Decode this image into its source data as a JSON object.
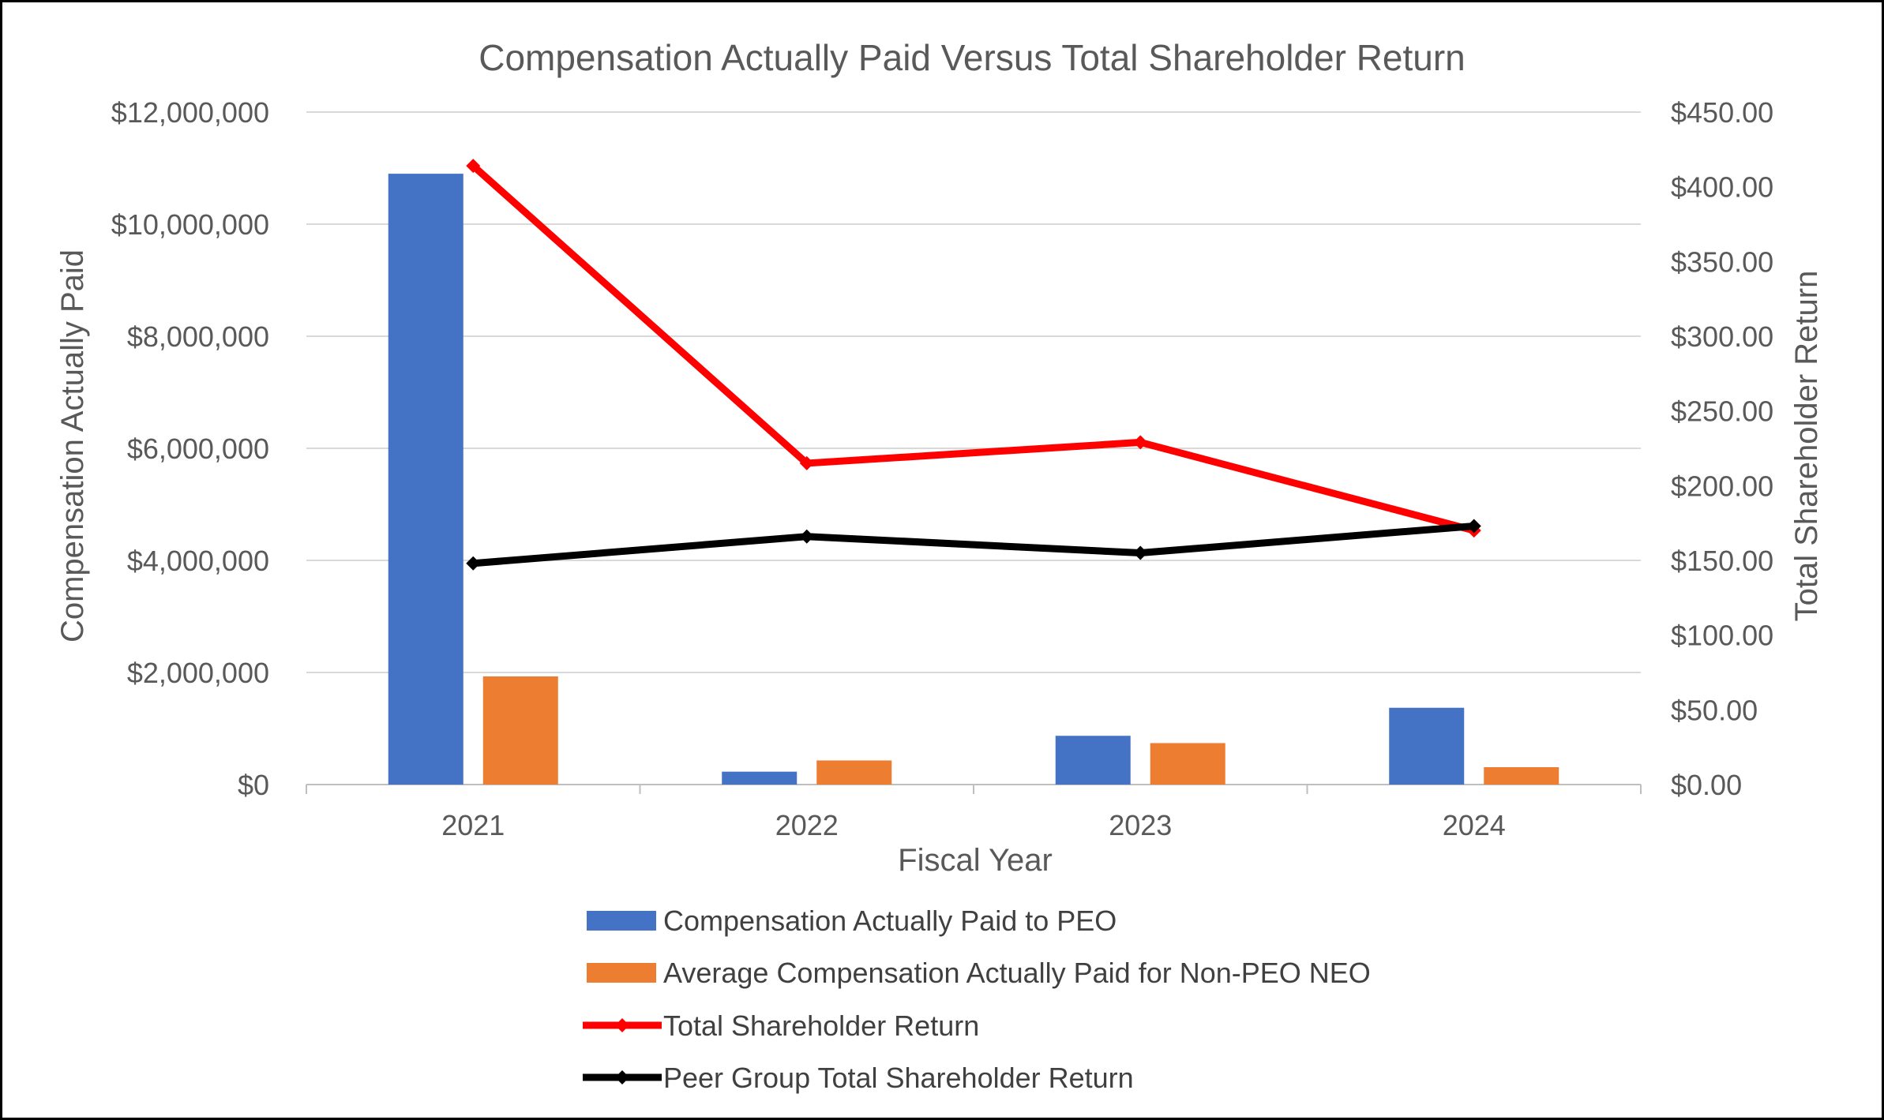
{
  "chart_data": {
    "type": "bar",
    "title": "Compensation Actually Paid Versus Total Shareholder Return",
    "xlabel": "Fiscal Year",
    "ylabel": "Compensation Actually Paid",
    "y2label": "Total Shareholder Return",
    "categories": [
      "2021",
      "2022",
      "2023",
      "2024"
    ],
    "ylim": [
      0,
      12000000
    ],
    "y2lim": [
      0,
      450
    ],
    "y_ticks": [
      {
        "value": 0,
        "label": "$0"
      },
      {
        "value": 2000000,
        "label": "$2,000,000"
      },
      {
        "value": 4000000,
        "label": "$4,000,000"
      },
      {
        "value": 6000000,
        "label": "$6,000,000"
      },
      {
        "value": 8000000,
        "label": "$8,000,000"
      },
      {
        "value": 10000000,
        "label": "$10,000,000"
      },
      {
        "value": 12000000,
        "label": "$12,000,000"
      }
    ],
    "y2_ticks": [
      {
        "value": 0,
        "label": "$0.00"
      },
      {
        "value": 50,
        "label": "$50.00"
      },
      {
        "value": 100,
        "label": "$100.00"
      },
      {
        "value": 150,
        "label": "$150.00"
      },
      {
        "value": 200,
        "label": "$200.00"
      },
      {
        "value": 250,
        "label": "$250.00"
      },
      {
        "value": 300,
        "label": "$300.00"
      },
      {
        "value": 350,
        "label": "$350.00"
      },
      {
        "value": 400,
        "label": "$400.00"
      },
      {
        "value": 450,
        "label": "$450.00"
      }
    ],
    "grid": true,
    "legend_position": "bottom",
    "series": [
      {
        "name": "Compensation Actually Paid to PEO",
        "kind": "bar",
        "axis": "left",
        "color": "#4472C4",
        "values": [
          10900000,
          230000,
          870000,
          1370000
        ]
      },
      {
        "name": "Average Compensation Actually Paid for Non-PEO NEO",
        "kind": "bar",
        "axis": "left",
        "color": "#ED7D31",
        "values": [
          1930000,
          430000,
          740000,
          310000
        ]
      },
      {
        "name": "Total Shareholder Return",
        "kind": "line",
        "axis": "right",
        "color": "#FF0000",
        "values": [
          414,
          215,
          229,
          170
        ]
      },
      {
        "name": "Peer Group Total Shareholder Return",
        "kind": "line",
        "axis": "right",
        "color": "#000000",
        "values": [
          148,
          166,
          155,
          173
        ]
      }
    ]
  }
}
